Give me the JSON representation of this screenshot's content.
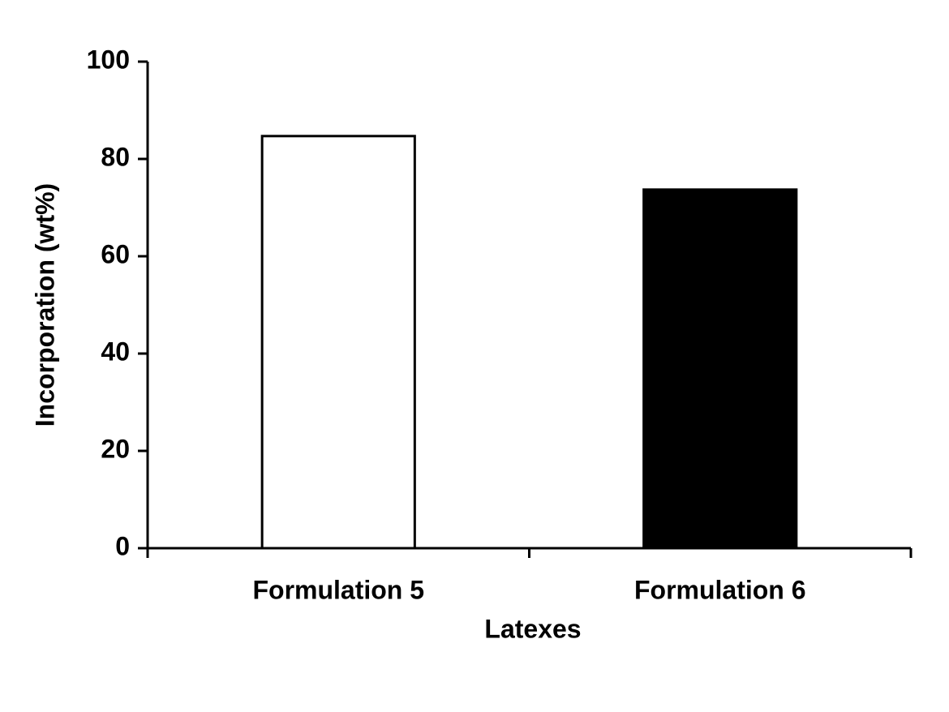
{
  "chart_data": {
    "type": "bar",
    "xlabel": "Latexes",
    "ylabel": "Incorporation (wt%)",
    "categories": [
      "Formulation 5",
      "Formulation 6"
    ],
    "values": [
      84.7,
      73.7
    ],
    "colors": [
      "#ffffff",
      "#000000"
    ],
    "edgecolor": "#000000",
    "ylim": [
      0,
      100
    ],
    "yticks": [
      0,
      20,
      40,
      60,
      80,
      100
    ],
    "grid": false
  }
}
